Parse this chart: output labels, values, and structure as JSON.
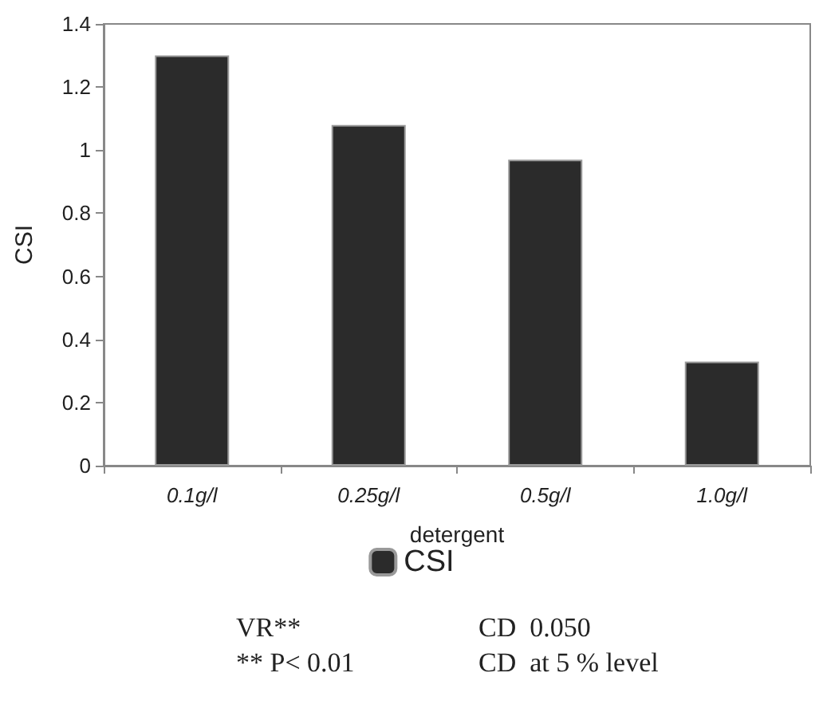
{
  "chart_data": {
    "type": "bar",
    "xlabel": "detergent",
    "ylabel": "CSI",
    "categories": [
      "0.1g/l",
      "0.25g/l",
      "0.5g/l",
      "1.0g/l"
    ],
    "series": [
      {
        "name": "CSI",
        "color": "#2b2b2b",
        "values": [
          1.3,
          1.08,
          0.97,
          0.33
        ]
      }
    ],
    "ylim": [
      0,
      1.4
    ],
    "yticks": [
      0,
      0.2,
      0.4,
      0.6,
      0.8,
      1,
      1.2,
      1.4
    ],
    "grid": false,
    "legend": "bottom",
    "annotations": [
      "VR**",
      "CD  0.050",
      "** P< 0.01",
      "CD  at 5 % level"
    ]
  }
}
